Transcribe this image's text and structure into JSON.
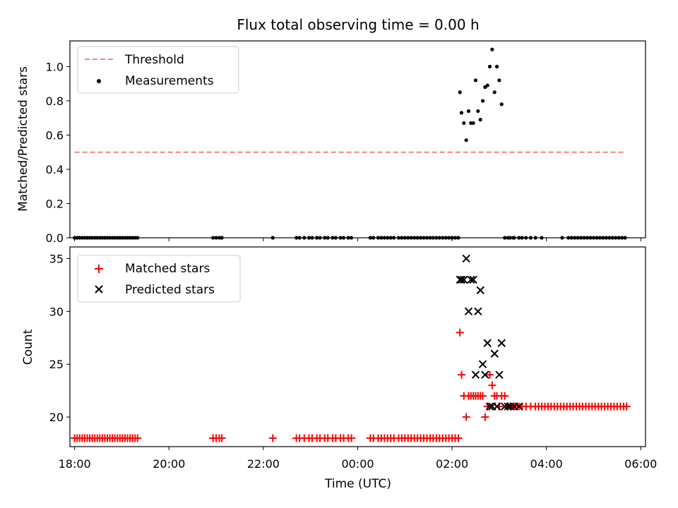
{
  "chart_data": [
    {
      "type": "scatter",
      "panel": "top",
      "title": "Flux total observing time = 0.00 h",
      "ylabel": "Matched/Predicted stars",
      "xlabel": "",
      "xlim": [
        -0.3,
        36.3
      ],
      "ylim": [
        0,
        1.15
      ],
      "yticks": [
        0.0,
        0.2,
        0.4,
        0.6,
        0.8,
        1.0
      ],
      "ytick_labels": [
        "0.0",
        "0.2",
        "0.4",
        "0.6",
        "0.8",
        "1.0"
      ],
      "legend": [
        "Threshold",
        "Measurements"
      ],
      "legend_location": "top-left",
      "threshold": {
        "name": "Threshold",
        "value": 0.5,
        "x_range": [
          0.0,
          35.0
        ],
        "color": "#ff7f7f"
      },
      "measurements": {
        "name": "Measurements",
        "color": "#000000",
        "zero_times": [
          0.0,
          0.16,
          0.32,
          0.48,
          0.64,
          0.8,
          0.96,
          1.12,
          1.28,
          1.44,
          1.6,
          1.76,
          1.92,
          2.08,
          2.24,
          2.4,
          2.56,
          2.72,
          2.88,
          3.04,
          3.2,
          3.36,
          3.52,
          3.68,
          3.84,
          4.0,
          8.8,
          9.0,
          9.2,
          9.36,
          12.6,
          14.1,
          14.3,
          14.6,
          14.9,
          15.1,
          15.4,
          15.6,
          15.9,
          16.1,
          16.4,
          16.6,
          16.9,
          17.1,
          17.4,
          17.6,
          18.8,
          19.0,
          19.3,
          19.5,
          19.7,
          19.9,
          20.1,
          20.3,
          20.6,
          20.8,
          21.0,
          21.2,
          21.4,
          21.6,
          21.8,
          22.0,
          22.2,
          22.4,
          22.6,
          22.8,
          23.0,
          23.2,
          23.4,
          23.6,
          23.8,
          24.0,
          24.2,
          24.4,
          27.9,
          29.7,
          31.0,
          31.4,
          31.6,
          31.8,
          32.0,
          32.2,
          32.4,
          32.6,
          32.8,
          33.0,
          33.2,
          33.4,
          33.6,
          33.8,
          34.0,
          34.2,
          34.4,
          34.6,
          34.8,
          35.0
        ],
        "x": [
          24.5,
          24.6,
          24.75,
          24.9,
          25.05,
          25.2,
          25.35,
          25.5,
          25.65,
          25.8,
          25.95,
          26.1,
          26.25,
          26.4,
          26.55,
          26.7,
          26.85,
          27.0,
          27.15,
          27.35,
          27.55,
          27.7,
          27.95,
          28.25,
          28.45,
          28.7,
          29.0,
          29.3
        ],
        "y": [
          0.85,
          0.73,
          0.67,
          0.57,
          0.74,
          0.67,
          0.67,
          0.92,
          0.74,
          0.69,
          0.8,
          0.88,
          0.89,
          1.0,
          1.1,
          0.85,
          1.0,
          0.92,
          0.78,
          0.0,
          0.0,
          0.0,
          0.0,
          0.0,
          0.0,
          0.0,
          0.0,
          0.0
        ]
      }
    },
    {
      "type": "scatter",
      "panel": "bottom",
      "title": "",
      "ylabel": "Count",
      "xlabel": "Time (UTC)",
      "xlim": [
        -0.3,
        36.3
      ],
      "ylim": [
        17.2,
        36.1
      ],
      "yticks": [
        20,
        25,
        30,
        35
      ],
      "ytick_labels": [
        "20",
        "25",
        "30",
        "35"
      ],
      "xticks": [
        0,
        6,
        12,
        18,
        24,
        30,
        36
      ],
      "xtick_labels": [
        "18:00",
        "20:00",
        "22:00",
        "00:00",
        "02:00",
        "04:00",
        "06:00"
      ],
      "legend": [
        "Matched stars",
        "Predicted stars"
      ],
      "legend_location": "top-left",
      "series": [
        {
          "name": "Matched stars",
          "marker": "+",
          "color": "#ff0000",
          "x": [
            0.0,
            0.16,
            0.32,
            0.48,
            0.64,
            0.8,
            0.96,
            1.12,
            1.28,
            1.44,
            1.6,
            1.76,
            1.92,
            2.08,
            2.24,
            2.4,
            2.56,
            2.72,
            2.88,
            3.04,
            3.2,
            3.36,
            3.52,
            3.68,
            3.84,
            4.0,
            8.8,
            9.0,
            9.2,
            9.36,
            12.6,
            14.1,
            14.3,
            14.6,
            14.9,
            15.1,
            15.4,
            15.6,
            15.9,
            16.1,
            16.4,
            16.6,
            16.9,
            17.1,
            17.4,
            17.6,
            18.8,
            19.0,
            19.3,
            19.5,
            19.7,
            19.9,
            20.1,
            20.3,
            20.6,
            20.8,
            21.0,
            21.2,
            21.4,
            21.6,
            21.8,
            22.0,
            22.2,
            22.4,
            22.6,
            22.8,
            23.0,
            23.2,
            23.4,
            23.6,
            23.8,
            24.0,
            24.2,
            24.4,
            24.5,
            24.6,
            24.75,
            24.9,
            25.05,
            25.2,
            25.35,
            25.5,
            25.65,
            25.8,
            25.95,
            26.1,
            26.25,
            26.4,
            26.55,
            26.7,
            26.85,
            27.0,
            27.15,
            27.35,
            27.55,
            27.7,
            27.95,
            28.25,
            28.45,
            28.7,
            29.0,
            29.3,
            29.5,
            29.7,
            29.9,
            30.1,
            30.3,
            30.5,
            30.7,
            30.9,
            31.1,
            31.3,
            31.5,
            31.7,
            31.9,
            32.1,
            32.3,
            32.5,
            32.7,
            32.9,
            33.1,
            33.3,
            33.5,
            33.7,
            33.9,
            34.1,
            34.3,
            34.5,
            34.7,
            34.9,
            35.1
          ],
          "y": [
            18,
            18,
            18,
            18,
            18,
            18,
            18,
            18,
            18,
            18,
            18,
            18,
            18,
            18,
            18,
            18,
            18,
            18,
            18,
            18,
            18,
            18,
            18,
            18,
            18,
            18,
            18,
            18,
            18,
            18,
            18,
            18,
            18,
            18,
            18,
            18,
            18,
            18,
            18,
            18,
            18,
            18,
            18,
            18,
            18,
            18,
            18,
            18,
            18,
            18,
            18,
            18,
            18,
            18,
            18,
            18,
            18,
            18,
            18,
            18,
            18,
            18,
            18,
            18,
            18,
            18,
            18,
            18,
            18,
            18,
            18,
            18,
            18,
            18,
            28,
            24,
            22,
            20,
            22,
            22,
            22,
            22,
            22,
            22,
            22,
            20,
            21,
            24,
            23,
            22,
            22,
            21,
            22,
            22,
            21,
            21,
            21,
            21,
            21,
            21,
            21,
            21,
            21,
            21,
            21,
            21,
            21,
            21,
            21,
            21,
            21,
            21,
            21,
            21,
            21,
            21,
            21,
            21,
            21,
            21,
            21,
            21,
            21,
            21,
            21,
            21,
            21,
            21,
            21,
            21,
            21
          ]
        },
        {
          "name": "Predicted stars",
          "marker": "x",
          "color": "#000000",
          "x": [
            24.5,
            24.6,
            24.75,
            24.9,
            25.05,
            25.2,
            25.35,
            25.5,
            25.65,
            25.8,
            25.95,
            26.1,
            26.25,
            26.4,
            26.55,
            26.7,
            26.85,
            27.0,
            27.15,
            27.35,
            27.55,
            27.7,
            27.95,
            28.25
          ],
          "y": [
            33,
            33,
            33,
            35,
            30,
            33,
            33,
            24,
            30,
            32,
            25,
            24,
            27,
            21,
            21,
            26,
            21,
            24,
            27,
            21,
            21,
            21,
            21,
            21
          ]
        }
      ]
    }
  ]
}
